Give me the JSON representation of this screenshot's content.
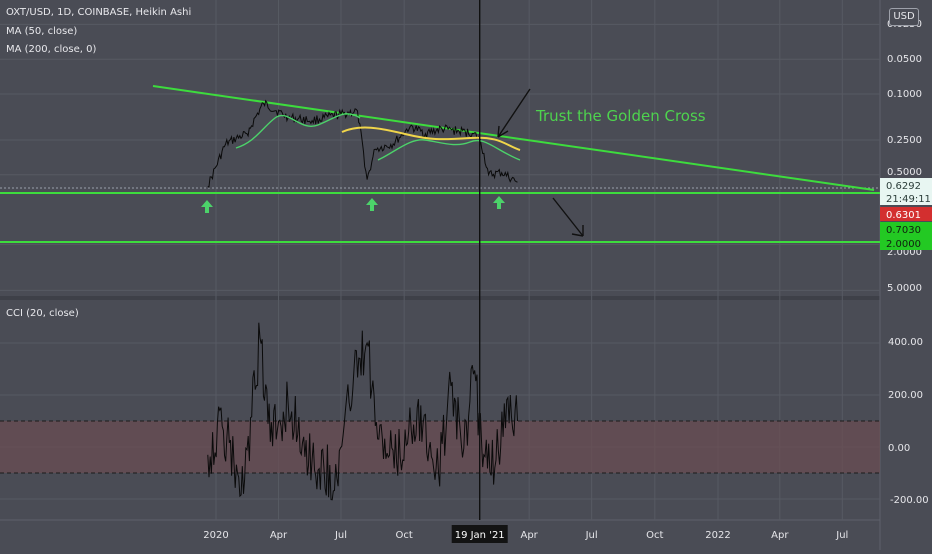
{
  "header": {
    "symbol_line": "OXT/USD, 1D, COINBASE, Heikin Ashi",
    "ma1_label": "MA (50, close)",
    "ma2_label": "MA (200, close, 0)",
    "currency": "USD"
  },
  "cci_header": "CCI (20, close)",
  "annotation": "Trust the Golden Cross",
  "colors": {
    "background": "#4a4c55",
    "grid": "#575a63",
    "price": "#0a0a0a",
    "trendline": "#3ddc3d",
    "ma50": "#4cd26a",
    "ma200": "#f0d54a",
    "cci_band": "#6b4d52",
    "axis_text": "#e6e6ea"
  },
  "chart_data": [
    {
      "type": "line",
      "title": "",
      "y_scale": "log-inverted",
      "x": [
        "2019-12-20",
        "2020-01-15",
        "2020-02-15",
        "2020-03-10",
        "2020-04-15",
        "2020-05-20",
        "2020-07-01",
        "2020-07-25",
        "2020-08-08",
        "2020-08-20",
        "2020-09-15",
        "2020-10-10",
        "2020-11-01",
        "2020-11-25",
        "2020-12-20",
        "2021-01-10",
        "2021-01-20",
        "2021-02-01",
        "2021-02-20",
        "2021-03-15"
      ],
      "series": [
        {
          "values": [
            0.63,
            0.27,
            0.22,
            0.12,
            0.16,
            0.17,
            0.15,
            0.14,
            0.55,
            0.3,
            0.27,
            0.19,
            0.22,
            0.2,
            0.21,
            0.22,
            0.25,
            0.5,
            0.48,
            0.58
          ]
        }
      ],
      "y_ticks": [
        "0.0250",
        "0.0500",
        "0.1000",
        "0.2500",
        "0.5000",
        "0.6292",
        "0.6301",
        "0.7030",
        "2.0000",
        "5.0000"
      ],
      "x_ticks": [
        "2020",
        "Apr",
        "Jul",
        "Oct",
        "19 Jan '21",
        "Apr",
        "Jul",
        "Oct",
        "2022",
        "Apr",
        "Jul"
      ],
      "price_labels": [
        {
          "text": "0.6292",
          "sub": "21:49:11"
        },
        {
          "text": "0.6301"
        },
        {
          "text": "0.7030"
        },
        {
          "text": "2.0000"
        }
      ]
    },
    {
      "type": "line",
      "title": "",
      "x": [
        "2019-12-20",
        "2020-01-10",
        "2020-02-10",
        "2020-03-05",
        "2020-03-20",
        "2020-04-15",
        "2020-05-20",
        "2020-06-25",
        "2020-07-20",
        "2020-08-08",
        "2020-08-25",
        "2020-09-20",
        "2020-10-20",
        "2020-11-20",
        "2020-12-10",
        "2020-12-25",
        "2021-01-10",
        "2021-01-25",
        "2021-02-10",
        "2021-03-01",
        "2021-03-15"
      ],
      "series": [
        {
          "values": [
            -30,
            80,
            -180,
            420,
            20,
            170,
            -50,
            -120,
            300,
            400,
            30,
            -60,
            150,
            -100,
            250,
            -40,
            280,
            -30,
            -80,
            190,
            100
          ]
        }
      ],
      "y_ticks": [
        "400.00",
        "200.00",
        "0.00",
        "-200.00"
      ],
      "ylim": [
        -260,
        540
      ]
    }
  ]
}
